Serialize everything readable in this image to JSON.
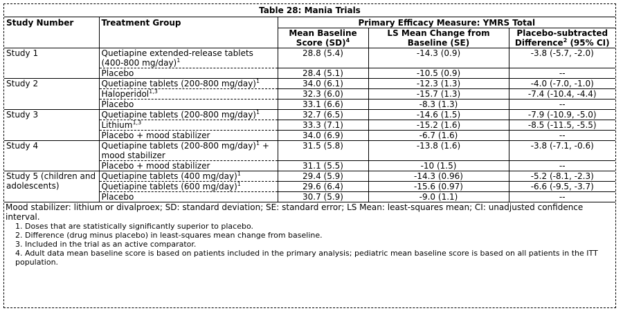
{
  "title": "Table 28: Mania Trials",
  "headers": {
    "study": "Study Number",
    "treatment": "Treatment Group",
    "primary": "Primary Efficacy Measure: YMRS Total",
    "baseline": "Mean Baseline Score (SD)",
    "baseline_sup": "4",
    "change": "LS Mean Change from Baseline (SE)",
    "placebo_sub": "Placebo-subtracted Difference",
    "placebo_sub_sup": "2",
    "placebo_sub_tail": " (95% CI)"
  },
  "rows": [
    {
      "study": "Study 1",
      "treatment": "Quetiapine extended-release tablets (400-800 mg/day)",
      "sup": "1",
      "baseline": "28.8 (5.4)",
      "change": "-14.3 (0.9)",
      "diff": "-3.8 (-5.7, -2.0)"
    },
    {
      "study": "",
      "treatment": "Placebo",
      "sup": "",
      "baseline": "28.4 (5.1)",
      "change": "-10.5 (0.9)",
      "diff": "--"
    },
    {
      "study": "Study 2",
      "treatment": "Quetiapine tablets (200-800 mg/day)",
      "sup": "1",
      "baseline": "34.0 (6.1)",
      "change": "-12.3 (1.3)",
      "diff": "-4.0 (-7.0, -1.0)"
    },
    {
      "study": "",
      "treatment": "Haloperidol",
      "sup": "1,3",
      "baseline": "32.3 (6.0)",
      "change": "-15.7 (1.3)",
      "diff": "-7.4 (-10.4, -4.4)"
    },
    {
      "study": "",
      "treatment": "Placebo",
      "sup": "",
      "baseline": "33.1 (6.6)",
      "change": "-8.3 (1.3)",
      "diff": "--"
    },
    {
      "study": "Study 3",
      "treatment": "Quetiapine tablets (200-800 mg/day)",
      "sup": "1",
      "baseline": "32.7 (6.5)",
      "change": "-14.6 (1.5)",
      "diff": "-7.9 (-10.9, -5.0)"
    },
    {
      "study": "",
      "treatment": "Lithium",
      "sup": "1,3",
      "baseline": "33.3 (7.1)",
      "change": "-15.2 (1.6)",
      "diff": "-8.5 (-11.5, -5.5)"
    },
    {
      "study": "",
      "treatment": "Placebo + mood stabilizer",
      "sup": "",
      "baseline": "34.0 (6.9)",
      "change": "-6.7 (1.6)",
      "diff": "--"
    },
    {
      "study": "Study 4",
      "treatment": "Quetiapine tablets (200-800 mg/day)",
      "sup": "1",
      "tail": " + mood stabilizer",
      "baseline": "31.5 (5.8)",
      "change": "-13.8 (1.6)",
      "diff": "-3.8 (-7.1, -0.6)"
    },
    {
      "study": "",
      "treatment": "Placebo + mood stabilizer",
      "sup": "",
      "baseline": "31.1 (5.5)",
      "change": "-10 (1.5)",
      "diff": "--"
    },
    {
      "study": "Study 5 (children and adolescents)",
      "treatment": "Quetiapine tablets (400 mg/day)",
      "sup": "1",
      "baseline": "29.4 (5.9)",
      "change": "-14.3 (0.96)",
      "diff": "-5.2 (-8.1, -2.3)"
    },
    {
      "study": "",
      "treatment": "Quetiapine tablets (600 mg/day)",
      "sup": "1",
      "baseline": "29.6 (6.4)",
      "change": "-15.6 (0.97)",
      "diff": "-6.6 (-9.5, -3.7)"
    },
    {
      "study": "",
      "treatment": "Placebo",
      "sup": "",
      "baseline": "30.7 (5.9)",
      "change": "-9.0 (1.1)",
      "diff": "--"
    }
  ],
  "footnote_intro": "Mood stabilizer: lithium or divalproex; SD: standard deviation; SE: standard error; LS Mean: least-squares mean; CI: unadjusted confidence interval.",
  "notes": [
    "1. Doses that are statistically significantly superior to placebo.",
    "2. Difference (drug minus placebo) in least-squares mean change from baseline.",
    "3. Included in the trial as an active comparator.",
    "4. Adult data mean baseline score is based on patients included in the primary analysis; pediatric mean baseline score is based on all patients in the ITT population."
  ]
}
